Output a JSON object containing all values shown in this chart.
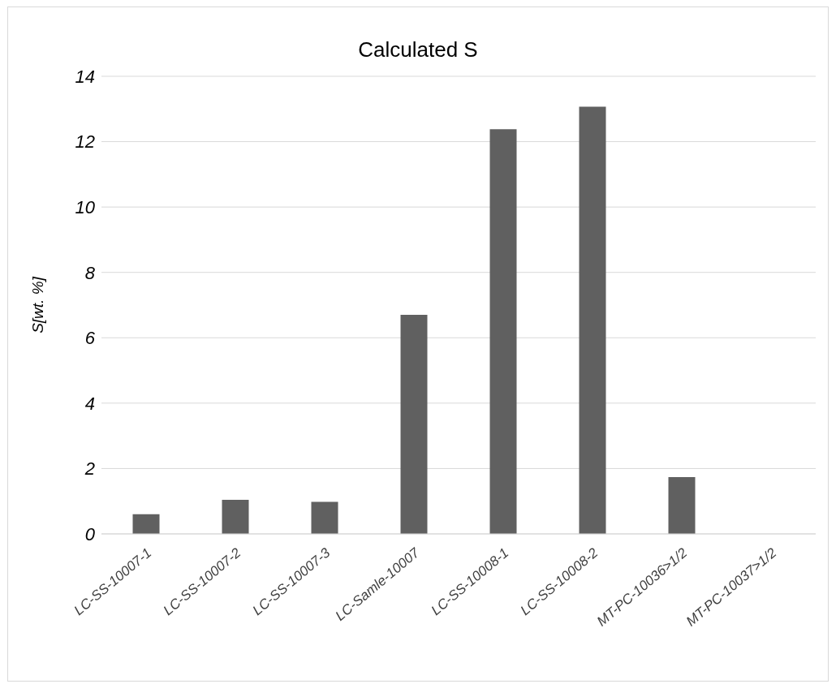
{
  "chart_data": {
    "type": "bar",
    "title": "Calculated S",
    "ylabel": "S[wt. %]",
    "categories": [
      "LC-SS-10007-1",
      "LC-SS-10007-2",
      "LC-SS-10007-3",
      "LC-Samle-10007",
      "LC-SS-10008-1",
      "LC-SS-10008-2",
      "MT-PC-10036>1/2",
      "MT-PC-10037>1/2"
    ],
    "values": [
      0.6,
      1.04,
      0.98,
      6.7,
      12.38,
      13.07,
      1.74,
      0
    ],
    "color": "#606060",
    "ylim": [
      0,
      14
    ],
    "yticks": [
      0,
      2,
      4,
      6,
      8,
      10,
      12,
      14
    ],
    "grid": "y"
  }
}
